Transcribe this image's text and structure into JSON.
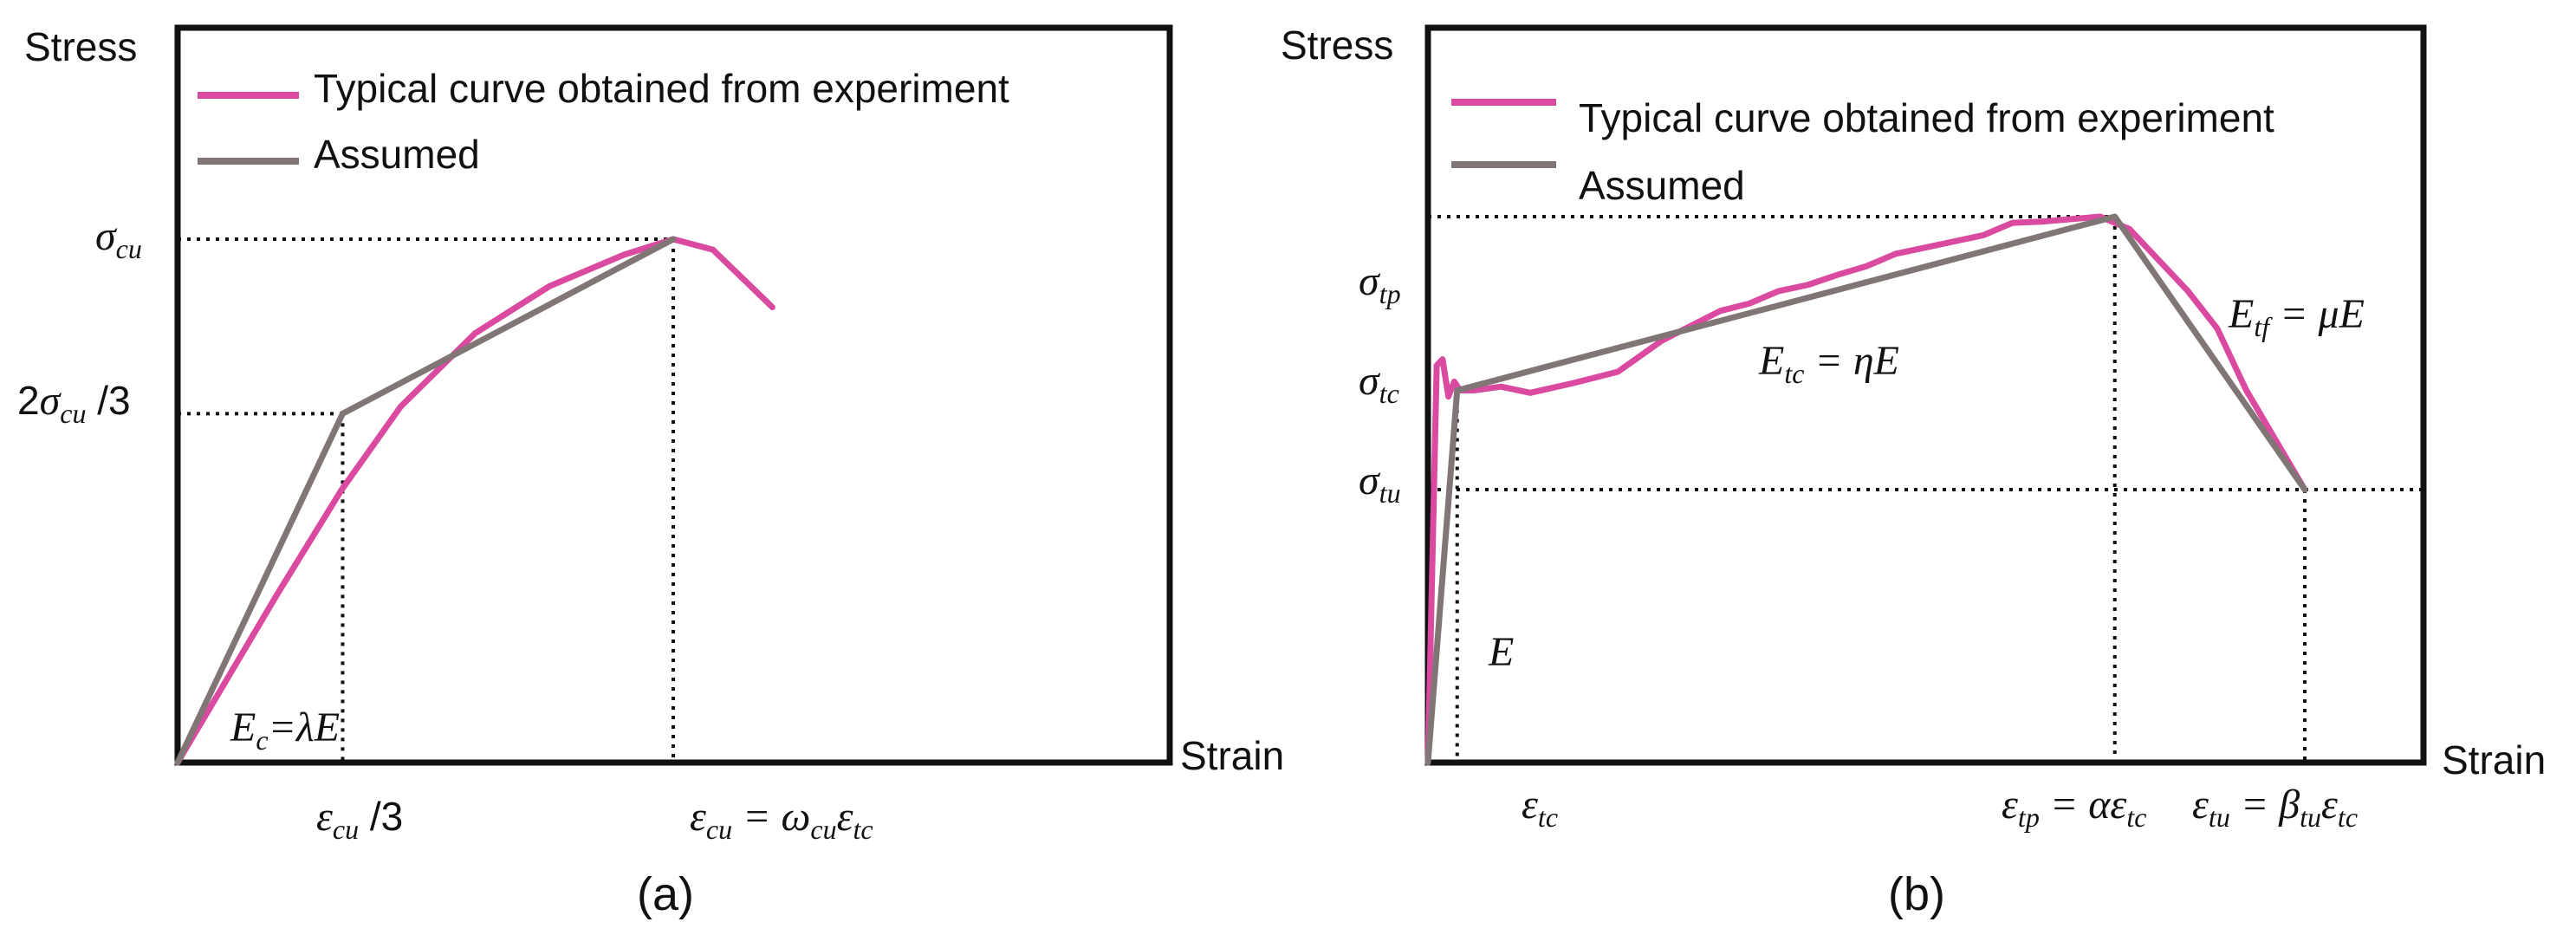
{
  "colors": {
    "experiment": "#d94aa0",
    "assumed": "#7f7675",
    "axis": "#111111"
  },
  "chart_data": [
    {
      "type": "line",
      "panel": "(a)",
      "xlabel": "Strain",
      "ylabel": "Stress",
      "legend": [
        "Typical curve obtained from experiment",
        "Assumed"
      ],
      "legend_position": "top-left",
      "x_ticks": {
        "eps_cu_third": "ε_cu/3",
        "eps_cu": "ε_cu = ω_cu ε_tc"
      },
      "y_ticks": {
        "two_thirds": "2σ_cu/3",
        "sigma_cu": "σ_cu"
      },
      "annotation": "E_c = λE",
      "xlim": [
        0,
        1.6
      ],
      "ylim": [
        0,
        1.1
      ],
      "series": [
        {
          "name": "Typical curve obtained from experiment",
          "x": [
            0,
            0.1,
            0.2,
            0.33,
            0.45,
            0.6,
            0.75,
            0.9,
            1.0,
            1.08,
            1.2
          ],
          "y": [
            0,
            0.16,
            0.32,
            0.52,
            0.68,
            0.82,
            0.91,
            0.97,
            1.0,
            0.98,
            0.87
          ]
        },
        {
          "name": "Assumed",
          "x": [
            0,
            0.333,
            1.0
          ],
          "y": [
            0,
            0.6667,
            1.0
          ]
        }
      ]
    },
    {
      "type": "line",
      "panel": "(b)",
      "xlabel": "Strain",
      "ylabel": "Stress",
      "legend": [
        "Typical curve obtained from experiment",
        "Assumed"
      ],
      "legend_position": "top-left",
      "x_ticks": {
        "eps_tc": "ε_tc",
        "eps_tp": "ε_tp = αε_tc",
        "eps_tu": "ε_tu = β_tu ε_tc"
      },
      "y_ticks": {
        "sigma_tp": "σ_tp",
        "sigma_tc": "σ_tc",
        "sigma_tu": "σ_tu"
      },
      "annotations": [
        "E",
        "E_tc = ηE",
        "E_tf = μE"
      ],
      "xlim": [
        0,
        30
      ],
      "ylim": [
        0,
        4.4
      ],
      "series": [
        {
          "name": "Typical curve obtained from experiment",
          "x": [
            0,
            0.15,
            0.3,
            0.5,
            0.7,
            0.9,
            1.1,
            1.3,
            1.6,
            2.5,
            3.5,
            5,
            6.5,
            8,
            9,
            10,
            11,
            12,
            13,
            14,
            15,
            16,
            17,
            18,
            19,
            20,
            21,
            22,
            23,
            24,
            25,
            26,
            27,
            28,
            29,
            30
          ],
          "y": [
            0,
            1.6,
            3.2,
            3.25,
            2.95,
            3.07,
            3.0,
            3.0,
            3.0,
            3.03,
            2.98,
            3.06,
            3.15,
            3.4,
            3.52,
            3.64,
            3.7,
            3.8,
            3.85,
            3.93,
            4.0,
            4.1,
            4.15,
            4.2,
            4.25,
            4.35,
            4.36,
            4.38,
            4.4,
            4.3,
            4.05,
            3.8,
            3.5,
            3.0,
            2.6,
            2.2
          ]
        },
        {
          "name": "Assumed",
          "x": [
            0,
            1,
            23.5,
            30
          ],
          "y": [
            0,
            3.0,
            4.4,
            2.2
          ]
        }
      ]
    }
  ],
  "captions": {
    "a": "(a)",
    "b": "(b)"
  }
}
